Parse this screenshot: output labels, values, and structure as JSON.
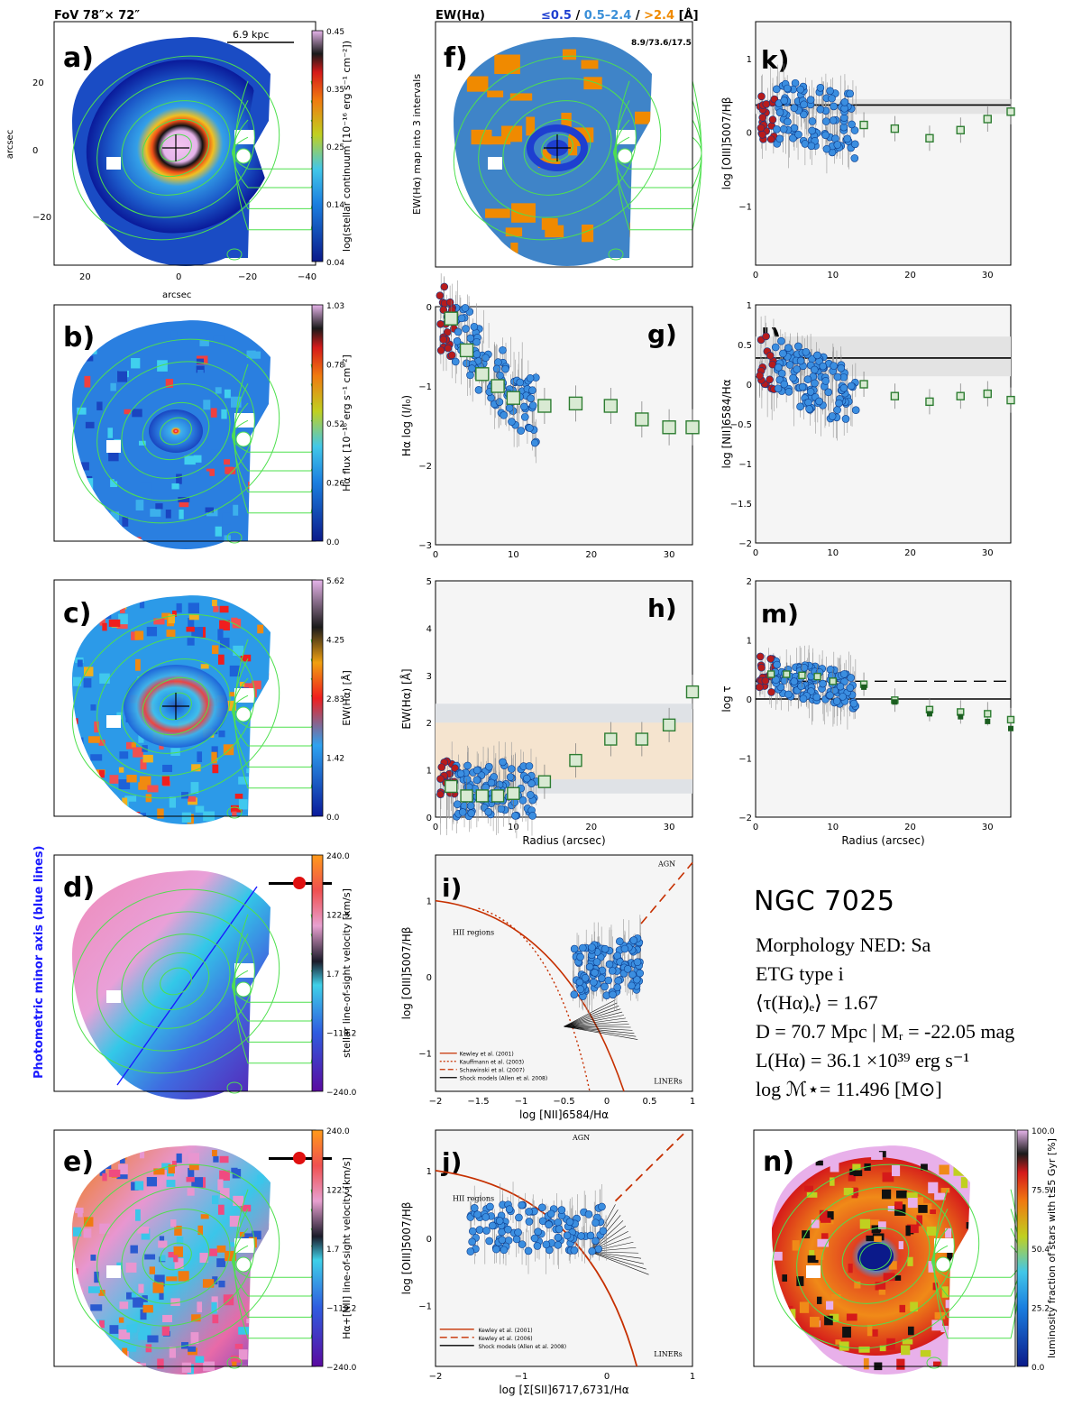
{
  "headers": {
    "fov": "FoV 78″× 72″",
    "ew_title": "EW(Hα)",
    "ew_bins": [
      "≤0.5",
      "0.5–2.4",
      ">2.4"
    ],
    "ew_bins_sep": " / ",
    "ew_unit": "[Å]",
    "ew_stats": "8.9/73.6/17.5",
    "scale_bar": "6.9 kpc"
  },
  "colors": {
    "ew_low": "#1e3fd0",
    "ew_mid": "#3a8fd8",
    "ew_high": "#f08a00",
    "green_points": "#2e7d32",
    "red_points": "#b71c1c",
    "blue_points": "#3b8ee0",
    "contours": "#4ee04e",
    "minor_axis_label": "#1a1aff"
  },
  "panels": {
    "a": {
      "label": "a)",
      "cbar_label": "log(stellar continuum [10⁻¹⁶ erg s⁻¹ cm⁻²])",
      "cbar_ticks": [
        "0.45",
        "0.35",
        "0.25",
        "0.14",
        "0.04"
      ],
      "xlabel": "arcsec",
      "ylabel": "arcsec",
      "xticks": [
        "20",
        "0",
        "−20",
        "−40"
      ],
      "yticks": [
        "20",
        "0",
        "−20"
      ]
    },
    "b": {
      "label": "b)",
      "cbar_label": "Hα flux [10⁻¹⁶ erg s⁻¹ cm⁻²]",
      "cbar_ticks": [
        "1.03",
        "0.78",
        "0.52",
        "0.26",
        "0.0"
      ]
    },
    "c": {
      "label": "c)",
      "cbar_label": "EW(Hα) [Å]",
      "cbar_ticks": [
        "5.62",
        "4.25",
        "2.83",
        "1.42",
        "0.0"
      ]
    },
    "d": {
      "label": "d)",
      "cbar_label": "stellar line-of-sight velocity [km/s]",
      "cbar_ticks": [
        "240.0",
        "122.5",
        "1.7",
        "−119.2",
        "−240.0"
      ],
      "side_label": "Photometric minor axis (blue lines)"
    },
    "e": {
      "label": "e)",
      "cbar_label": "Hα+[NII] line-of-sight velocity [km/s]",
      "cbar_ticks": [
        "240.0",
        "122.5",
        "1.7",
        "−119.2",
        "−240.0"
      ]
    },
    "f": {
      "label": "f)",
      "ylabel": "EW(Hα) map into 3 intervals"
    },
    "g": {
      "label": "g)",
      "ylabel": "Hα log (I/I₀)",
      "xticks": [
        "0",
        "10",
        "20",
        "30"
      ],
      "yticks": [
        "0",
        "−1",
        "−2",
        "−3"
      ]
    },
    "h": {
      "label": "h)",
      "ylabel": "EW(Hα) [Å]",
      "xlabel": "Radius (arcsec)",
      "xticks": [
        "0",
        "10",
        "20",
        "30"
      ],
      "yticks": [
        "5",
        "4",
        "3",
        "2",
        "1",
        "0"
      ]
    },
    "i": {
      "label": "i)",
      "xlabel": "log [NII]6584/Hα",
      "ylabel": "log [OIII]5007/Hβ",
      "xticks": [
        "−2",
        "−1.5",
        "−1",
        "−0.5",
        "0",
        "0.5",
        "1"
      ],
      "yticks": [
        "1",
        "0",
        "−1"
      ],
      "region_agn": "AGN",
      "region_hii": "HII regions",
      "region_liner": "LINERs",
      "legend": [
        "Kewley et al. (2001)",
        "Kauffmann et al. (2003)",
        "Schawinski et al. (2007)",
        "Shock models (Allen et al. 2008)"
      ]
    },
    "j": {
      "label": "j)",
      "xlabel": "log [Σ[SII]6717,6731/Hα",
      "ylabel": "log [OIII]5007/Hβ",
      "xticks": [
        "−2",
        "−1",
        "0",
        "1"
      ],
      "yticks": [
        "1",
        "0",
        "−1"
      ],
      "region_agn": "AGN",
      "region_hii": "HII regions",
      "region_liner": "LINERs",
      "legend": [
        "Kewley et al. (2001)",
        "Kewley et al. (2006)",
        "Shock models (Allen et al. 2008)"
      ]
    },
    "k": {
      "label": "k)",
      "ylabel": "log [OIII]5007/Hβ",
      "xticks": [
        "0",
        "10",
        "20",
        "30"
      ],
      "yticks": [
        "1",
        "0",
        "−1"
      ]
    },
    "l": {
      "label": "l)",
      "ylabel": "log [NII]6584/Hα",
      "xticks": [
        "0",
        "10",
        "20",
        "30"
      ],
      "yticks": [
        "1",
        "0.5",
        "0",
        "−0.5",
        "−1",
        "−1.5",
        "−2"
      ]
    },
    "m": {
      "label": "m)",
      "ylabel": "log τ",
      "xlabel": "Radius (arcsec)",
      "xticks": [
        "0",
        "10",
        "20",
        "30"
      ],
      "yticks": [
        "2",
        "1",
        "0",
        "−1",
        "−2"
      ]
    },
    "n": {
      "label": "n)",
      "cbar_label": "luminosity fraction of stars with t≤5 Gyr [%]",
      "cbar_ticks": [
        "100.0",
        "75.5",
        "50.4",
        "25.2",
        "0.0"
      ]
    }
  },
  "chart_data": [
    {
      "panel": "g",
      "type": "scatter",
      "xlabel": "",
      "ylabel": "Hα log (I/I₀)",
      "xlim": [
        0,
        33
      ],
      "ylim": [
        -3,
        0
      ],
      "series": [
        {
          "values_x": [
            2,
            4,
            6,
            8,
            10,
            14,
            18,
            22.5,
            26.5,
            30,
            33
          ],
          "values_y": [
            -0.15,
            -0.55,
            -0.85,
            -1.0,
            -1.15,
            -1.25,
            -1.22,
            -1.25,
            -1.42,
            -1.52,
            -1.52
          ]
        }
      ]
    },
    {
      "panel": "h",
      "type": "scatter",
      "xlabel": "Radius (arcsec)",
      "ylabel": "EW(Hα) [Å]",
      "xlim": [
        0,
        33
      ],
      "ylim": [
        0,
        5
      ],
      "series": [
        {
          "values_x": [
            2,
            4,
            6,
            8,
            10,
            14,
            18,
            22.5,
            26.5,
            30,
            33
          ],
          "values_y": [
            0.65,
            0.45,
            0.45,
            0.45,
            0.5,
            0.75,
            1.2,
            1.65,
            1.65,
            1.95,
            2.65
          ]
        }
      ]
    },
    {
      "panel": "k",
      "type": "scatter",
      "xlabel": "",
      "ylabel": "log [OIII]5007/Hβ",
      "xlim": [
        0,
        33
      ],
      "ylim": [
        -1.8,
        1.5
      ],
      "series": [
        {
          "values_x": [
            14,
            18,
            22.5,
            26.5,
            30,
            33
          ],
          "values_y": [
            0.1,
            0.05,
            -0.08,
            0.03,
            0.18,
            0.28
          ]
        }
      ]
    },
    {
      "panel": "l",
      "type": "scatter",
      "xlabel": "",
      "ylabel": "log [NII]6584/Hα",
      "xlim": [
        0,
        33
      ],
      "ylim": [
        -2,
        1
      ],
      "series": [
        {
          "values_x": [
            14,
            18,
            22.5,
            26.5,
            30,
            33
          ],
          "values_y": [
            0.0,
            -0.15,
            -0.22,
            -0.15,
            -0.12,
            -0.2
          ]
        }
      ]
    },
    {
      "panel": "m",
      "type": "scatter",
      "xlabel": "Radius (arcsec)",
      "ylabel": "log τ",
      "xlim": [
        0,
        33
      ],
      "ylim": [
        -2,
        2
      ],
      "series": [
        {
          "values_x": [
            2,
            4,
            6,
            8,
            10,
            14,
            18,
            22.5,
            26.5,
            30,
            33
          ],
          "values_y": [
            0.42,
            0.42,
            0.4,
            0.38,
            0.3,
            0.25,
            -0.02,
            -0.18,
            -0.22,
            -0.25,
            -0.35
          ]
        },
        {
          "values_x": [
            14,
            18,
            22.5,
            26.5,
            30,
            33
          ],
          "values_y": [
            0.2,
            -0.05,
            -0.25,
            -0.3,
            -0.38,
            -0.5
          ]
        }
      ]
    }
  ],
  "info": {
    "title": "NGC 7025",
    "lines": [
      "Morphology NED: Sa",
      "ETG type i",
      "⟨τ(Hα)ₑ⟩ = 1.67",
      "D = 70.7 Mpc | Mᵣ = -22.05 mag",
      "L(Hα) = 36.1 ×10³⁹ erg s⁻¹",
      "log ℳ⋆= 11.496 [M⊙]"
    ]
  }
}
